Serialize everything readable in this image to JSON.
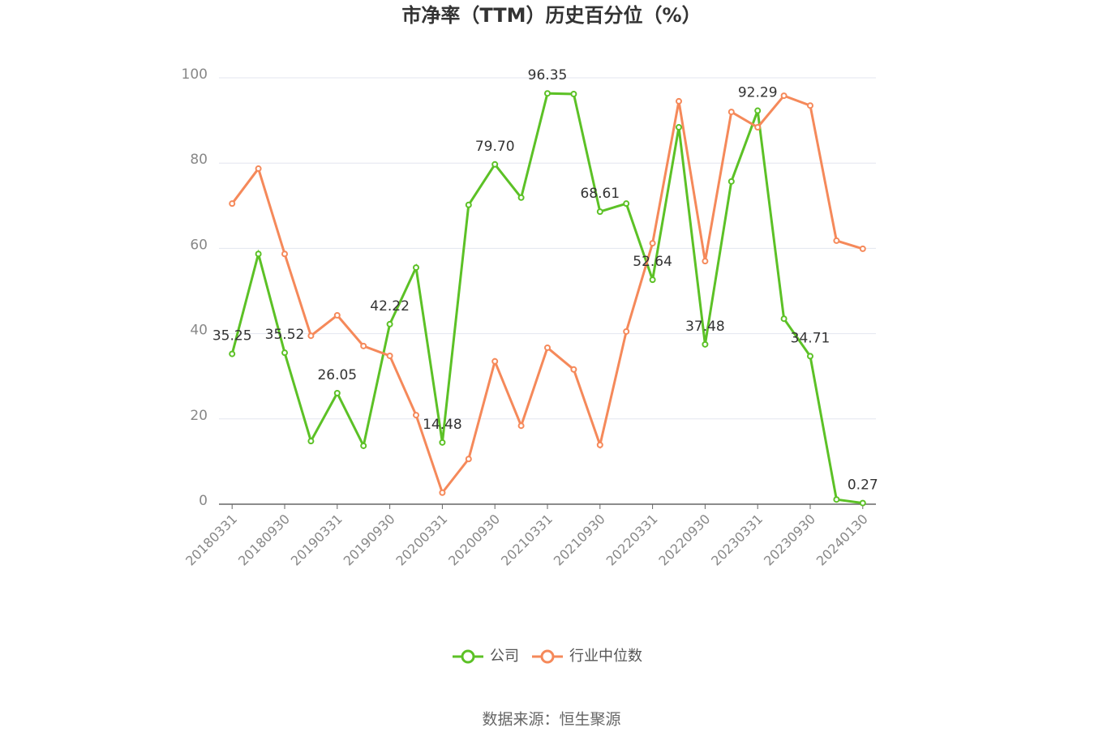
{
  "chart_data": {
    "type": "line",
    "title": "市净率（TTM）历史百分位（%）",
    "source": "数据来源：恒生聚源",
    "categories": [
      "20180331",
      null,
      "20180930",
      null,
      "20190331",
      null,
      "20190930",
      null,
      "20200331",
      null,
      "20200930",
      null,
      "20210331",
      null,
      "20210930",
      null,
      "20220331",
      null,
      "20220930",
      null,
      "20230331",
      null,
      "20230930",
      null,
      "20240130"
    ],
    "series": [
      {
        "name": "公司",
        "color": "#5cc126",
        "values": [
          35.25,
          58.7,
          35.52,
          14.8,
          26.05,
          13.7,
          42.22,
          55.5,
          14.48,
          70.2,
          79.7,
          71.9,
          96.35,
          96.2,
          68.61,
          70.5,
          52.64,
          88.4,
          37.48,
          75.7,
          92.29,
          43.5,
          34.71,
          1.1,
          0.27
        ],
        "value_labels": [
          "35.25",
          null,
          "35.52",
          null,
          "26.05",
          null,
          "42.22",
          null,
          "14.48",
          null,
          "79.70",
          null,
          "96.35",
          null,
          "68.61",
          null,
          "52.64",
          null,
          "37.48",
          null,
          "92.29",
          null,
          "34.71",
          null,
          "0.27"
        ]
      },
      {
        "name": "行业中位数",
        "color": "#f5895a",
        "values": [
          70.5,
          78.7,
          58.7,
          39.5,
          44.3,
          37.1,
          34.8,
          20.9,
          2.7,
          10.6,
          33.5,
          18.4,
          36.7,
          31.6,
          13.9,
          40.5,
          61.2,
          94.5,
          57.0,
          92.0,
          88.4,
          95.8,
          93.5,
          61.8,
          59.9
        ]
      }
    ],
    "ylim": [
      0,
      100
    ],
    "yticks": [
      0,
      20,
      40,
      60,
      80,
      100
    ],
    "grid": true
  }
}
